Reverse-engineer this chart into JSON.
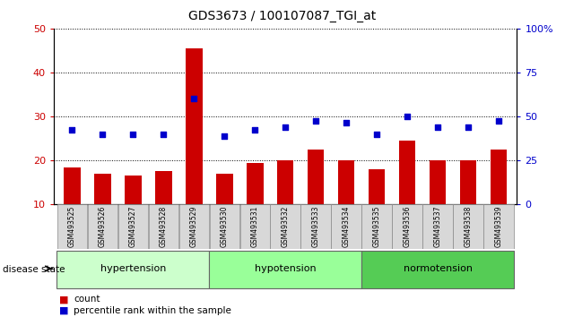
{
  "title": "GDS3673 / 100107087_TGI_at",
  "samples": [
    "GSM493525",
    "GSM493526",
    "GSM493527",
    "GSM493528",
    "GSM493529",
    "GSM493530",
    "GSM493531",
    "GSM493532",
    "GSM493533",
    "GSM493534",
    "GSM493535",
    "GSM493536",
    "GSM493537",
    "GSM493538",
    "GSM493539"
  ],
  "bar_values": [
    18.5,
    17.0,
    16.5,
    17.5,
    45.5,
    17.0,
    19.5,
    20.0,
    22.5,
    20.0,
    18.0,
    24.5,
    20.0,
    20.0,
    22.5
  ],
  "dot_values_left": [
    27.0,
    26.0,
    26.0,
    26.0,
    34.0,
    25.5,
    27.0,
    27.5,
    29.0,
    28.5,
    26.0,
    30.0,
    27.5,
    27.5,
    29.0
  ],
  "bar_color": "#CC0000",
  "dot_color": "#0000CC",
  "ylim_left": [
    10,
    50
  ],
  "ylim_right": [
    0,
    100
  ],
  "yticks_left": [
    10,
    20,
    30,
    40,
    50
  ],
  "yticks_right": [
    0,
    25,
    50,
    75,
    100
  ],
  "groups": [
    {
      "label": "hypertension",
      "start": 0,
      "end": 5
    },
    {
      "label": "hypotension",
      "start": 5,
      "end": 10
    },
    {
      "label": "normotension",
      "start": 10,
      "end": 15
    }
  ],
  "group_colors": [
    "#ccffcc",
    "#99ff99",
    "#55cc55"
  ],
  "disease_state_label": "disease state",
  "legend_items": [
    {
      "label": "count",
      "color": "#CC0000"
    },
    {
      "label": "percentile rank within the sample",
      "color": "#0000CC"
    }
  ],
  "tick_label_color_left": "#CC0000",
  "tick_label_color_right": "#0000CC"
}
